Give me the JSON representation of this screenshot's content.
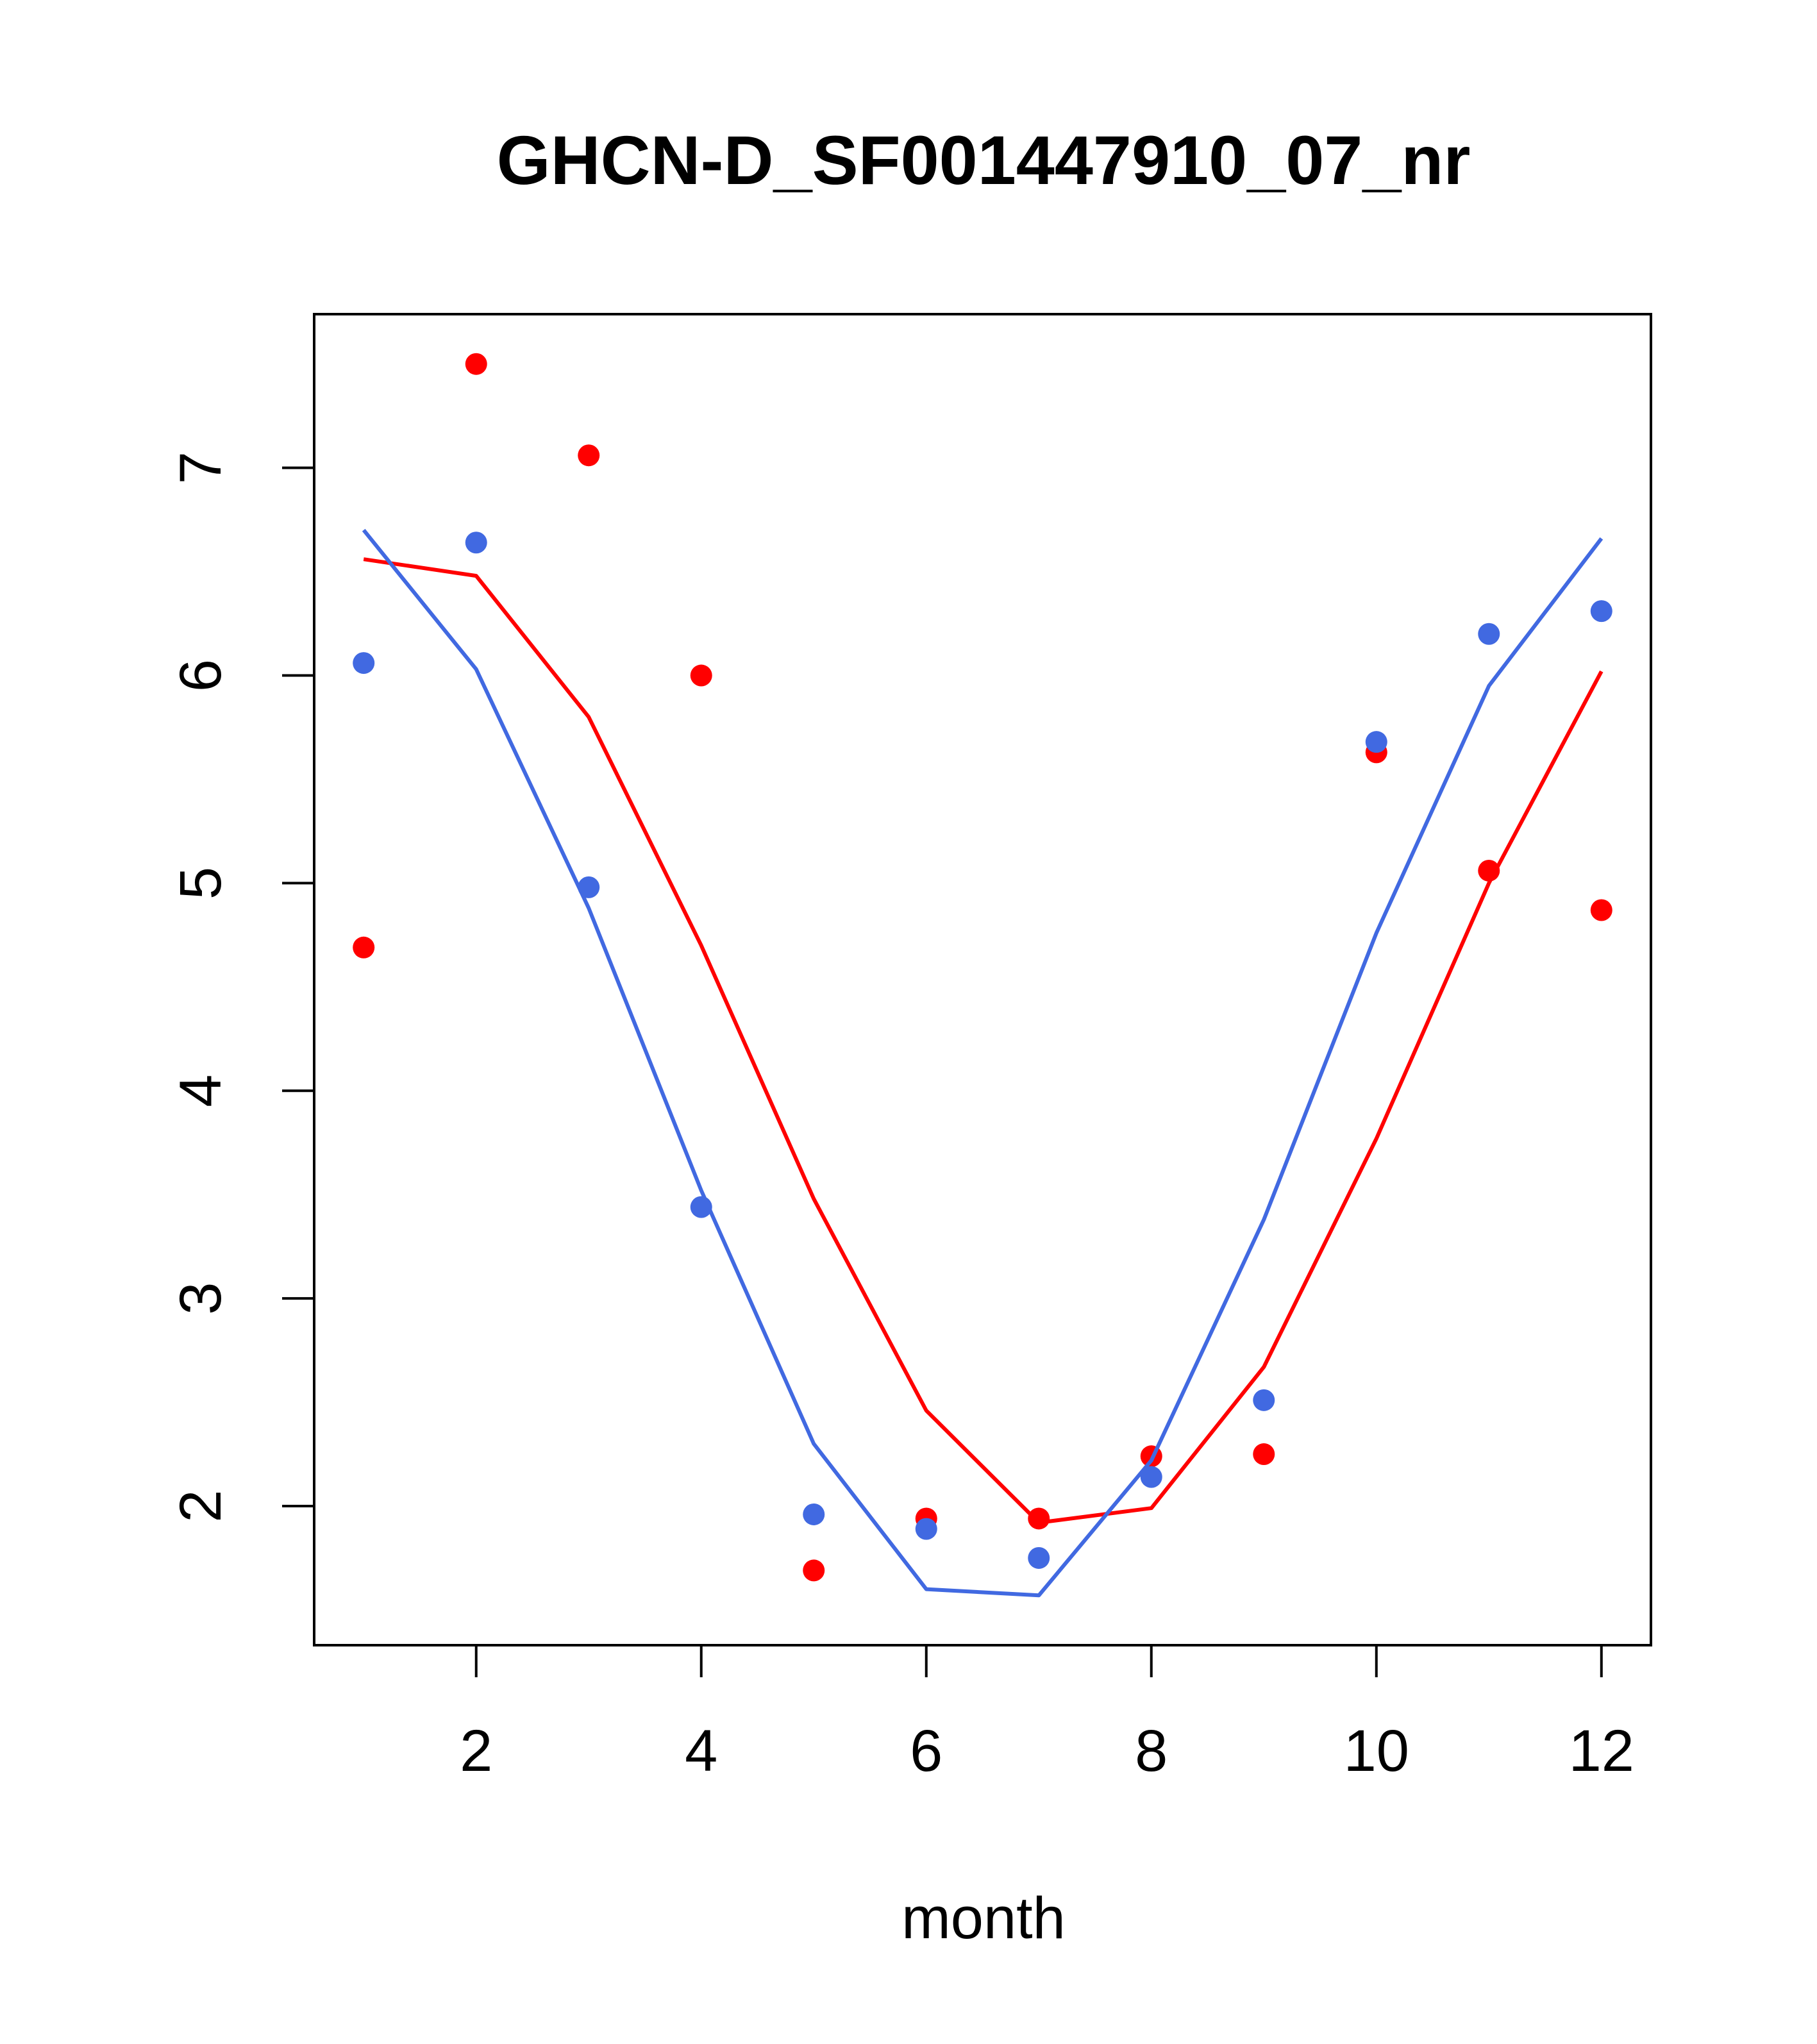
{
  "chart_data": {
    "type": "scatter",
    "title": "GHCN-D_SF001447910_07_nr",
    "xlabel": "month",
    "ylabel": "",
    "xlim": [
      0.56,
      12.44
    ],
    "ylim": [
      1.33,
      7.74
    ],
    "xticks": [
      2,
      4,
      6,
      8,
      10,
      12
    ],
    "yticks": [
      2,
      3,
      4,
      5,
      6,
      7
    ],
    "grid": false,
    "legend": "none",
    "x": [
      1,
      2,
      3,
      4,
      5,
      6,
      7,
      8,
      9,
      10,
      11,
      12
    ],
    "series": [
      {
        "color": "#ff0000",
        "points": [
          4.69,
          7.5,
          7.06,
          6.0,
          1.69,
          1.94,
          1.94,
          2.24,
          2.25,
          5.63,
          5.06,
          4.87
        ],
        "fit": [
          6.56,
          6.48,
          5.8,
          4.7,
          3.48,
          2.46,
          1.92,
          1.99,
          2.67,
          3.77,
          5.0,
          6.02
        ]
      },
      {
        "color": "#4169e1",
        "points": [
          6.06,
          6.64,
          4.98,
          3.44,
          1.96,
          1.89,
          1.75,
          2.14,
          2.51,
          5.68,
          6.2,
          6.31
        ],
        "fit": [
          6.7,
          6.03,
          4.88,
          3.52,
          2.3,
          1.6,
          1.57,
          2.22,
          3.38,
          4.76,
          5.95,
          6.66
        ]
      }
    ]
  }
}
